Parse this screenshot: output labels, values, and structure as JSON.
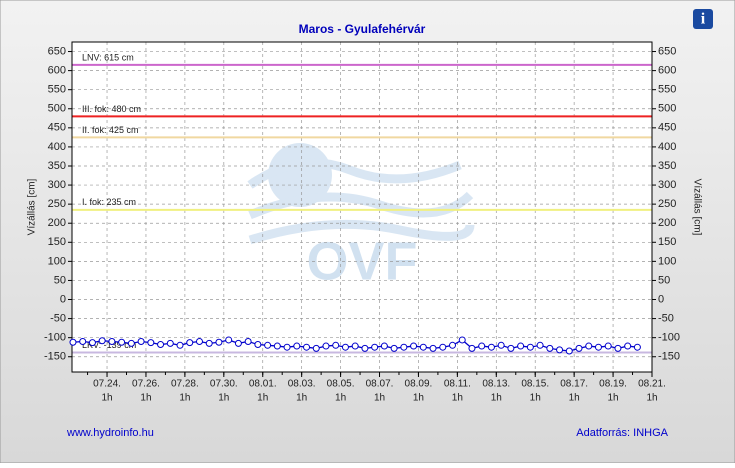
{
  "chart_data": {
    "type": "line",
    "title": "Maros - Gyulafehérvár",
    "y_label": "Vízállás [cm]",
    "y2_label": "Vízállás [cm]",
    "ylim": [
      -190,
      675
    ],
    "yticks": [
      -150,
      -100,
      -50,
      0,
      50,
      100,
      150,
      200,
      250,
      300,
      350,
      400,
      450,
      500,
      550,
      600,
      650
    ],
    "y2lim": [
      -190,
      675
    ],
    "y2ticks": [
      -150,
      -100,
      -50,
      0,
      50,
      100,
      150,
      200,
      250,
      300,
      350,
      400,
      450,
      500,
      550,
      600,
      650
    ],
    "xlim": [
      22.2,
      52
    ],
    "xticks": [
      {
        "value": 24,
        "label": "07.24."
      },
      {
        "value": 26,
        "label": "07.26."
      },
      {
        "value": 28,
        "label": "07.28."
      },
      {
        "value": 30,
        "label": "07.30."
      },
      {
        "value": 32,
        "label": "08.01."
      },
      {
        "value": 34,
        "label": "08.03."
      },
      {
        "value": 36,
        "label": "08.05."
      },
      {
        "value": 38,
        "label": "08.07."
      },
      {
        "value": 40,
        "label": "08.09."
      },
      {
        "value": 42,
        "label": "08.11."
      },
      {
        "value": 44,
        "label": "08.13."
      },
      {
        "value": 46,
        "label": "08.15."
      },
      {
        "value": 48,
        "label": "08.17."
      },
      {
        "value": 50,
        "label": "08.19."
      },
      {
        "value": 52,
        "label": "08.21."
      }
    ],
    "xtick_sublabel": "1h",
    "grid": true,
    "reference_lines": [
      {
        "label": "LNV: 615 cm",
        "value": 615,
        "color": "#cc66cc"
      },
      {
        "label": "III. fok: 480 cm",
        "value": 480,
        "color": "#ee2222"
      },
      {
        "label": "II. fok: 425 cm",
        "value": 425,
        "color": "#f0d8a0"
      },
      {
        "label": "I. fok: 235 cm",
        "value": 235,
        "color": "#f0f080"
      },
      {
        "label": "LKV: -139 cm",
        "value": -139,
        "color": "#c8b8e0"
      }
    ],
    "series": [
      {
        "color": "#0000cc",
        "x": [
          22.25,
          22.75,
          23.25,
          23.75,
          24.25,
          24.75,
          25.25,
          25.75,
          26.25,
          26.75,
          27.25,
          27.75,
          28.25,
          28.75,
          29.25,
          29.75,
          30.25,
          30.75,
          31.25,
          31.75,
          32.25,
          32.75,
          33.25,
          33.75,
          34.25,
          34.75,
          35.25,
          35.75,
          36.25,
          36.75,
          37.25,
          37.75,
          38.25,
          38.75,
          39.25,
          39.75,
          40.25,
          40.75,
          41.25,
          41.75,
          42.25,
          42.75,
          43.25,
          43.75,
          44.25,
          44.75,
          45.25,
          45.75,
          46.25,
          46.75,
          47.25,
          47.75,
          48.25,
          48.75,
          49.25,
          49.75,
          50.25,
          50.75,
          51.25
        ],
        "values": [
          -112,
          -110,
          -113,
          -108,
          -110,
          -112,
          -115,
          -110,
          -113,
          -118,
          -115,
          -120,
          -113,
          -110,
          -115,
          -112,
          -106,
          -115,
          -110,
          -118,
          -120,
          -122,
          -125,
          -122,
          -125,
          -128,
          -122,
          -120,
          -125,
          -122,
          -128,
          -125,
          -122,
          -128,
          -125,
          -122,
          -125,
          -128,
          -125,
          -120,
          -106,
          -128,
          -122,
          -125,
          -120,
          -128,
          -122,
          -125,
          -120,
          -128,
          -132,
          -135,
          -128,
          -122,
          -125,
          -122,
          -128,
          -122,
          -125
        ]
      }
    ],
    "watermark": "OVF",
    "footer_left": "www.hydroinfo.hu",
    "footer_right": "Adatforrás: INHGA",
    "info_icon": "i"
  }
}
